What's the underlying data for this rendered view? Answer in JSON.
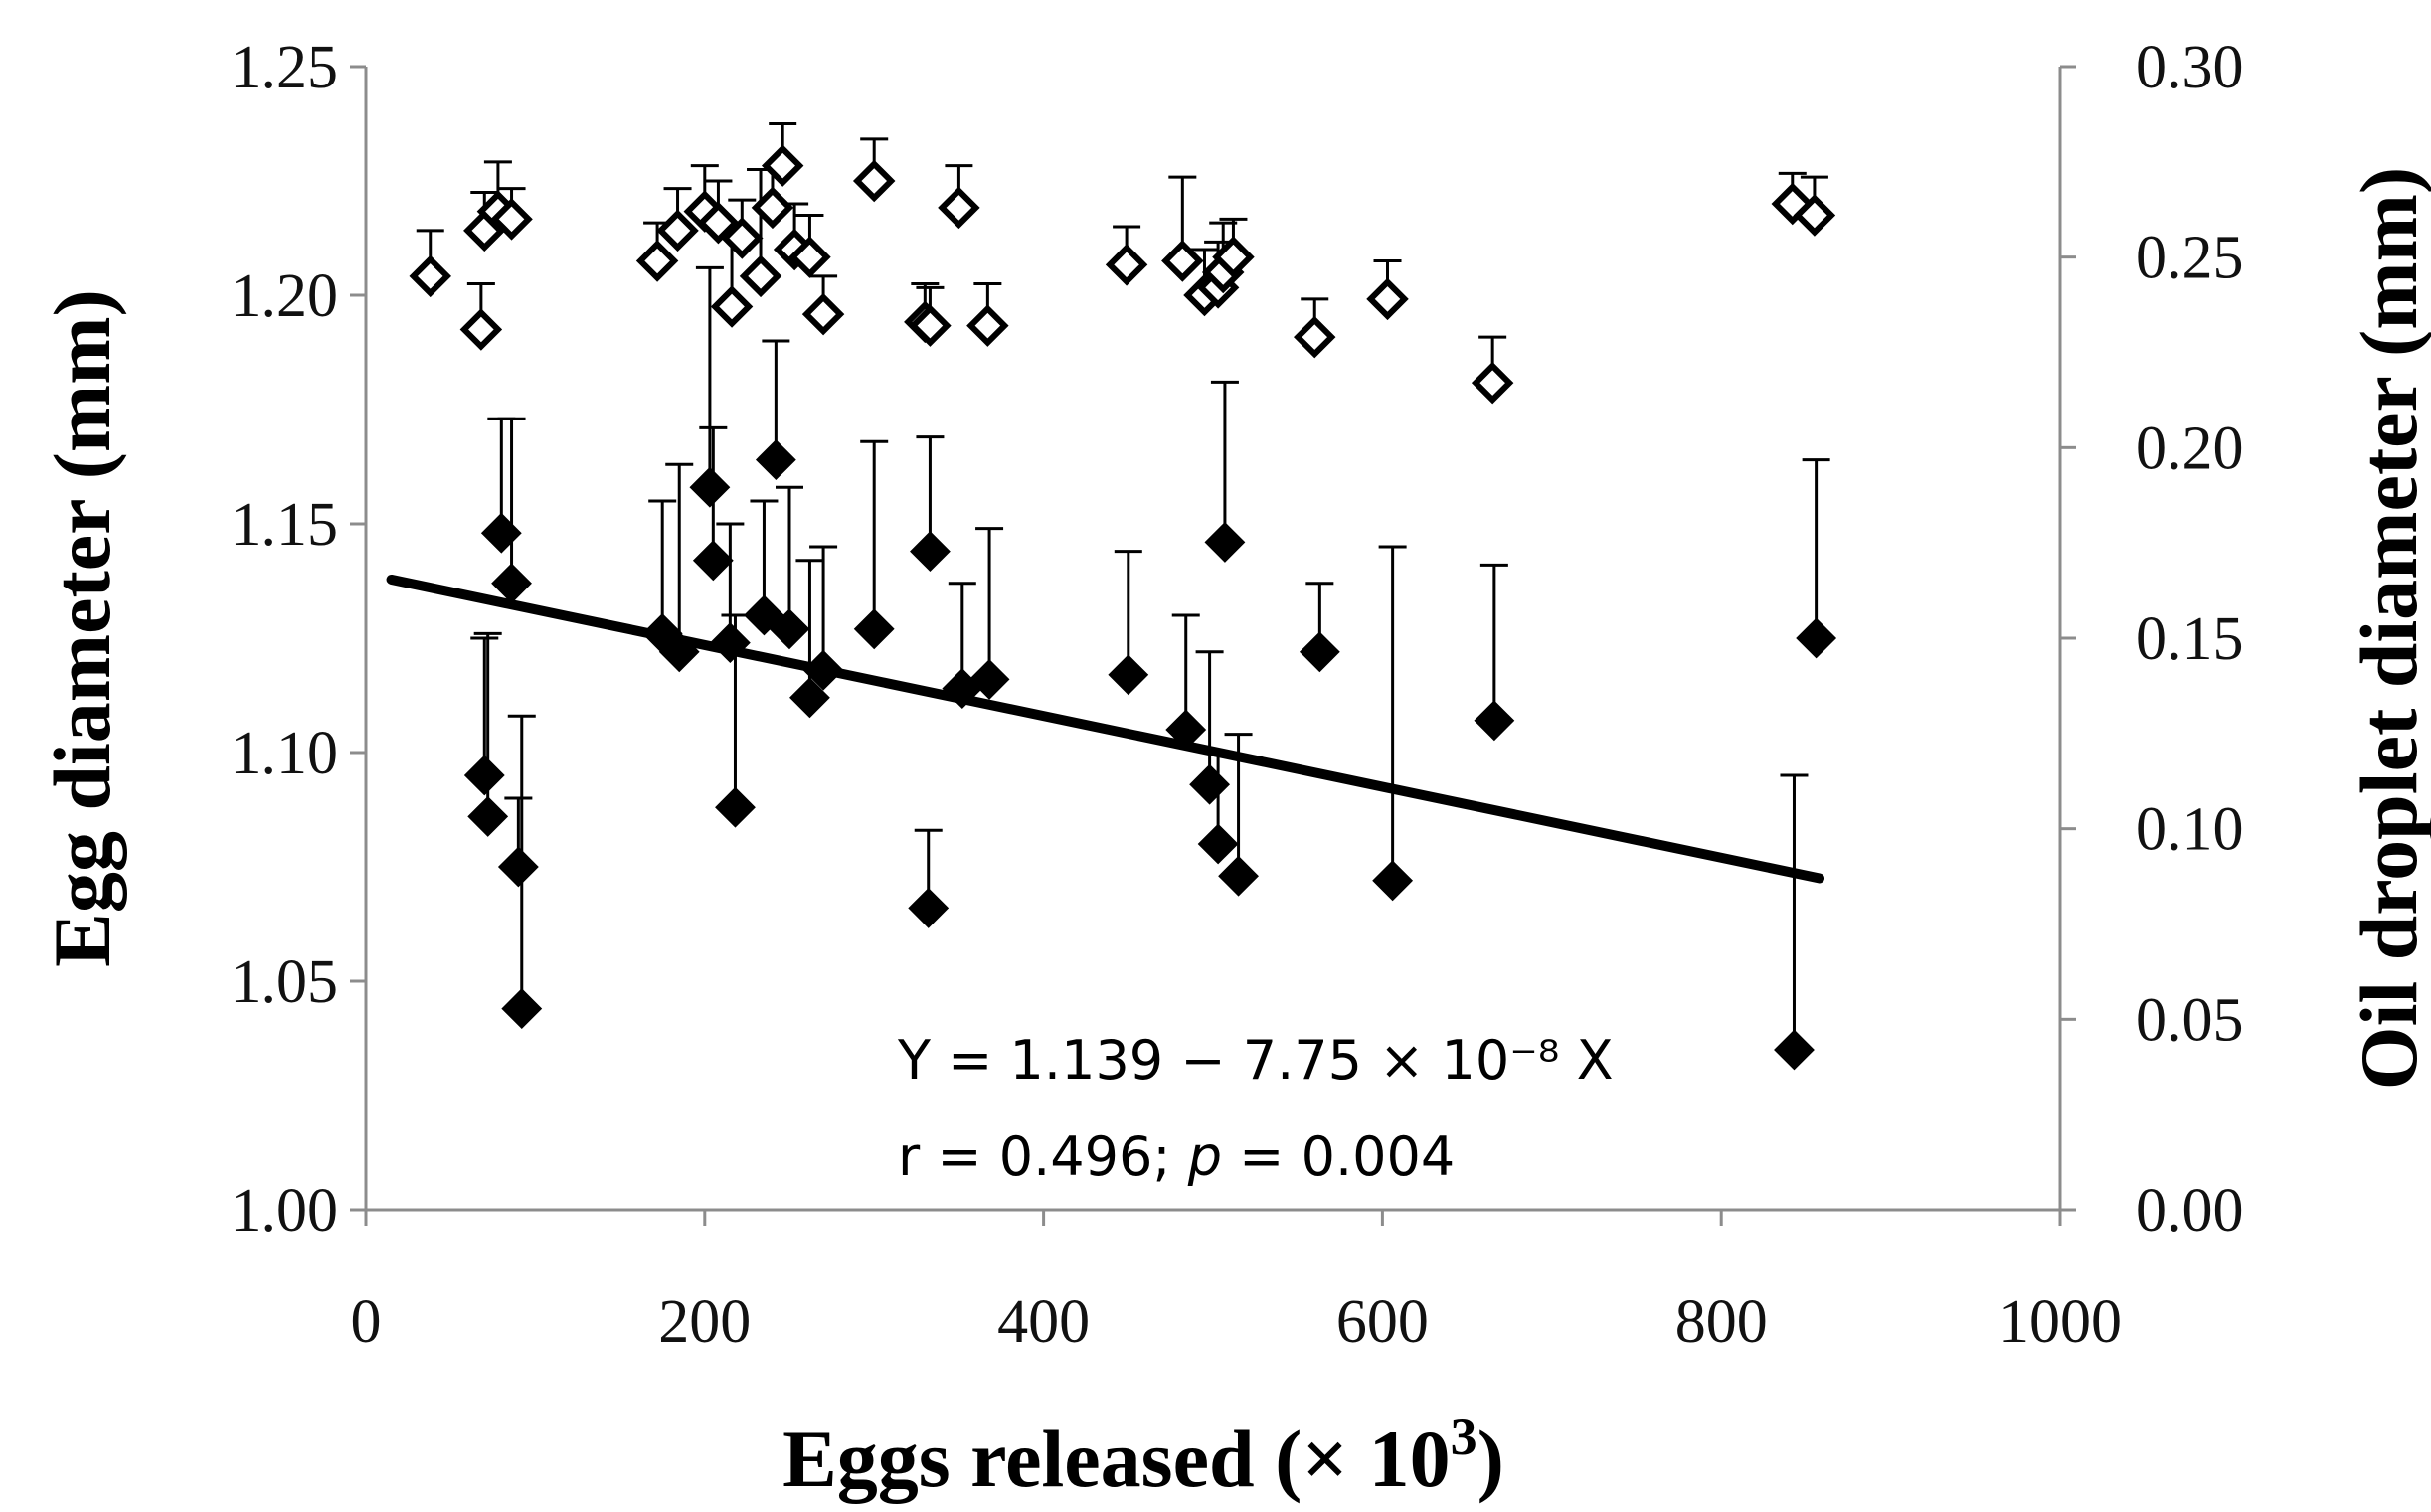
{
  "chart_data": {
    "type": "scatter",
    "title": "",
    "xlabel": "Eggs released (× 10",
    "xlabel_sup": "3",
    "xlabel_end": ")",
    "ylabel": "Egg diameter (mm)",
    "y2label": "Oil droplet diameter (mm)",
    "xlim": [
      0,
      1000
    ],
    "ylim": [
      1.0,
      1.25
    ],
    "y2lim": [
      0.0,
      0.3
    ],
    "x_ticks": [
      "0",
      "200",
      "400",
      "600",
      "800",
      "1000"
    ],
    "y_ticks": [
      "1.00",
      "1.05",
      "1.10",
      "1.15",
      "1.20",
      "1.25"
    ],
    "y2_ticks": [
      "0.00",
      "0.05",
      "0.10",
      "0.15",
      "0.20",
      "0.25",
      "0.30"
    ],
    "grid": false,
    "series": [
      {
        "name": "Egg diameter",
        "axis": "left",
        "marker": "filled-diamond",
        "color": "#000000",
        "points": [
          {
            "x": 70,
            "y": 1.095,
            "err": 0.03
          },
          {
            "x": 72,
            "y": 1.086,
            "err": 0.04
          },
          {
            "x": 80,
            "y": 1.148,
            "err": 0.025
          },
          {
            "x": 86,
            "y": 1.137,
            "err": 0.036
          },
          {
            "x": 90,
            "y": 1.075,
            "err": 0.015
          },
          {
            "x": 92,
            "y": 1.044,
            "err": 0.064
          },
          {
            "x": 175,
            "y": 1.126,
            "err": 0.029
          },
          {
            "x": 185,
            "y": 1.122,
            "err": 0.041
          },
          {
            "x": 203,
            "y": 1.158,
            "err": 0.048
          },
          {
            "x": 205,
            "y": 1.142,
            "err": 0.029
          },
          {
            "x": 215,
            "y": 1.124,
            "err": 0.026
          },
          {
            "x": 218,
            "y": 1.088,
            "err": 0.042
          },
          {
            "x": 235,
            "y": 1.13,
            "err": 0.025
          },
          {
            "x": 242,
            "y": 1.164,
            "err": 0.026
          },
          {
            "x": 250,
            "y": 1.127,
            "err": 0.031
          },
          {
            "x": 262,
            "y": 1.112,
            "err": 0.03
          },
          {
            "x": 270,
            "y": 1.118,
            "err": 0.027
          },
          {
            "x": 300,
            "y": 1.127,
            "err": 0.041
          },
          {
            "x": 332,
            "y": 1.066,
            "err": 0.017
          },
          {
            "x": 333,
            "y": 1.144,
            "err": 0.025
          },
          {
            "x": 352,
            "y": 1.114,
            "err": 0.023
          },
          {
            "x": 368,
            "y": 1.116,
            "err": 0.033
          },
          {
            "x": 450,
            "y": 1.117,
            "err": 0.027
          },
          {
            "x": 484,
            "y": 1.105,
            "err": 0.025
          },
          {
            "x": 498,
            "y": 1.093,
            "err": 0.029
          },
          {
            "x": 503,
            "y": 1.08,
            "err": 0.02
          },
          {
            "x": 507,
            "y": 1.146,
            "err": 0.035
          },
          {
            "x": 515,
            "y": 1.073,
            "err": 0.031
          },
          {
            "x": 563,
            "y": 1.122,
            "err": 0.015
          },
          {
            "x": 606,
            "y": 1.072,
            "err": 0.073
          },
          {
            "x": 666,
            "y": 1.107,
            "err": 0.034
          },
          {
            "x": 843,
            "y": 1.035,
            "err": 0.06
          },
          {
            "x": 856,
            "y": 1.125,
            "err": 0.039
          }
        ]
      },
      {
        "name": "Oil droplet diameter",
        "axis": "right",
        "marker": "open-diamond",
        "color": "#000000",
        "points": [
          {
            "x": 38,
            "y": 0.245,
            "err": 0.012
          },
          {
            "x": 68,
            "y": 0.231,
            "err": 0.012
          },
          {
            "x": 70,
            "y": 0.257,
            "err": 0.01
          },
          {
            "x": 78,
            "y": 0.262,
            "err": 0.013
          },
          {
            "x": 86,
            "y": 0.26,
            "err": 0.008
          },
          {
            "x": 172,
            "y": 0.249,
            "err": 0.01
          },
          {
            "x": 184,
            "y": 0.257,
            "err": 0.011
          },
          {
            "x": 200,
            "y": 0.262,
            "err": 0.012
          },
          {
            "x": 208,
            "y": 0.259,
            "err": 0.011
          },
          {
            "x": 216,
            "y": 0.237,
            "err": 0.022
          },
          {
            "x": 222,
            "y": 0.255,
            "err": 0.01
          },
          {
            "x": 233,
            "y": 0.245,
            "err": 0.028
          },
          {
            "x": 240,
            "y": 0.263,
            "err": 0.01
          },
          {
            "x": 246,
            "y": 0.274,
            "err": 0.011
          },
          {
            "x": 253,
            "y": 0.252,
            "err": 0.012
          },
          {
            "x": 262,
            "y": 0.25,
            "err": 0.011
          },
          {
            "x": 270,
            "y": 0.235,
            "err": 0.01
          },
          {
            "x": 300,
            "y": 0.27,
            "err": 0.011
          },
          {
            "x": 330,
            "y": 0.233,
            "err": 0.01
          },
          {
            "x": 333,
            "y": 0.232,
            "err": 0.01
          },
          {
            "x": 350,
            "y": 0.263,
            "err": 0.011
          },
          {
            "x": 367,
            "y": 0.232,
            "err": 0.011
          },
          {
            "x": 449,
            "y": 0.248,
            "err": 0.01
          },
          {
            "x": 482,
            "y": 0.249,
            "err": 0.022
          },
          {
            "x": 495,
            "y": 0.24,
            "err": 0.012
          },
          {
            "x": 503,
            "y": 0.242,
            "err": 0.012
          },
          {
            "x": 506,
            "y": 0.246,
            "err": 0.013
          },
          {
            "x": 512,
            "y": 0.25,
            "err": 0.01
          },
          {
            "x": 560,
            "y": 0.229,
            "err": 0.01
          },
          {
            "x": 603,
            "y": 0.239,
            "err": 0.01
          },
          {
            "x": 665,
            "y": 0.217,
            "err": 0.012
          },
          {
            "x": 842,
            "y": 0.264,
            "err": 0.008
          },
          {
            "x": 855,
            "y": 0.261,
            "err": 0.01
          }
        ]
      }
    ],
    "regression": {
      "series": "Egg diameter",
      "intercept": 1.139,
      "slope_per_1000": -0.0775,
      "x_range": [
        15,
        858
      ],
      "equation_text": "Y = 1.139 − 7.75 × 10⁻⁸ X",
      "stats_prefix": "r = 0.496; ",
      "stats_p": "p",
      "stats_suffix": " = 0.004"
    }
  }
}
